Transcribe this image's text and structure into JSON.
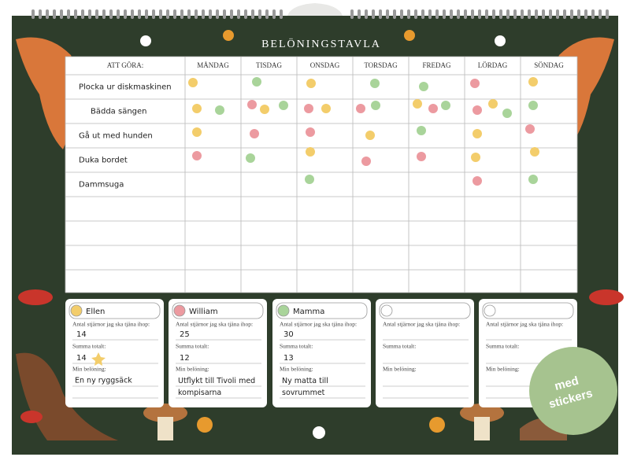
{
  "title": "BELÖNINGSTAVLA",
  "table": {
    "corner": "ATT GÖRA:",
    "days": [
      "MÅNDAG",
      "TISDAG",
      "ONSDAG",
      "TORSDAG",
      "FREDAG",
      "LÖRDAG",
      "SÖNDAG"
    ],
    "tasks": [
      "Plocka ur diskmaskinen",
      "Bädda sängen",
      "Gå ut med hunden",
      "Duka bordet",
      "Dammsuga"
    ]
  },
  "card_labels": {
    "goal": "Antal stjärnor jag ska tjäna ihop:",
    "total": "Summa totalt:",
    "reward": "Min belöning:"
  },
  "cards": [
    {
      "name": "Ellen",
      "goal": "14",
      "total": "14",
      "reward": "En ny ryggsäck"
    },
    {
      "name": "William",
      "goal": "25",
      "total": "12",
      "reward": "Utflykt till Tivoli med kompisarna"
    },
    {
      "name": "Mamma",
      "goal": "30",
      "total": "13",
      "reward": "Ny matta till sovrummet"
    }
  ],
  "badge": "med stickers"
}
